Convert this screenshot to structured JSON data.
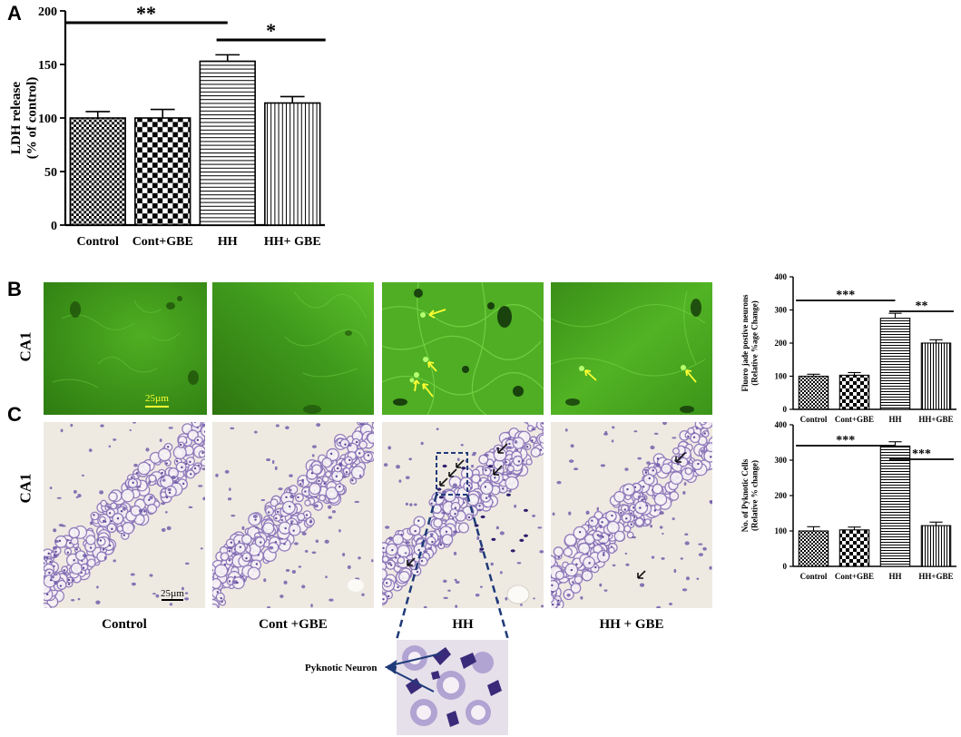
{
  "panels": {
    "a": {
      "letter": "A"
    },
    "b": {
      "letter": "B",
      "row_label": "CA1",
      "scale_bar": "25µm"
    },
    "c": {
      "letter": "C",
      "row_label": "CA1",
      "scale_bar": "25µm"
    }
  },
  "micrograph_captions": [
    "Control",
    "Cont +GBE",
    "HH",
    "HH + GBE"
  ],
  "inset_label": "Pyknotic Neuron",
  "colors": {
    "fluoro_bg": "#3f9a1c",
    "nissl_bg": "#eeeae2",
    "arrow_yellow": "#ffff33",
    "arrow_navy": "#1f3a78"
  },
  "chart_data": [
    {
      "type": "bar",
      "categories": [
        "Control",
        "Cont+GBE",
        "HH",
        "HH+ GBE"
      ],
      "values": [
        100,
        100,
        153,
        114
      ],
      "errors": [
        6,
        8,
        6,
        6
      ],
      "ylabel": "LDH release\n(% of control)",
      "ylim": [
        0,
        200
      ],
      "yticks": [
        "0",
        "50",
        "100",
        "150",
        "200"
      ],
      "patterns": [
        "checker-small",
        "checker-large",
        "horizontal",
        "vertical"
      ],
      "significance": [
        {
          "from": 0,
          "to": 2,
          "label": "**"
        },
        {
          "from": 2,
          "to": 3,
          "label": "*"
        }
      ]
    },
    {
      "type": "bar",
      "categories": [
        "Control",
        "Cont+GBE",
        "HH",
        "HH+GBE"
      ],
      "values": [
        100,
        103,
        275,
        200
      ],
      "errors": [
        6,
        8,
        15,
        10
      ],
      "ylabel": "Fluoro jade postive neurons\n(Relative %age Change)",
      "ylim": [
        0,
        400
      ],
      "yticks": [
        "0",
        "100",
        "200",
        "300",
        "400"
      ],
      "patterns": [
        "checker-small",
        "checker-large",
        "horizontal",
        "vertical"
      ],
      "significance": [
        {
          "from": 0,
          "to": 2,
          "label": "***"
        },
        {
          "from": 2,
          "to": 3,
          "label": "**"
        }
      ]
    },
    {
      "type": "bar",
      "categories": [
        "Control",
        "Cont+GBE",
        "HH",
        "HH+GBE"
      ],
      "values": [
        100,
        103,
        340,
        115
      ],
      "errors": [
        12,
        8,
        12,
        10
      ],
      "ylabel": "No. of Pyknotic Cells\n(Relative % change)",
      "ylim": [
        0,
        400
      ],
      "yticks": [
        "0",
        "100",
        "200",
        "300",
        "400"
      ],
      "patterns": [
        "checker-small",
        "checker-large",
        "horizontal",
        "vertical"
      ],
      "significance": [
        {
          "from": 0,
          "to": 2,
          "label": "***"
        },
        {
          "from": 2,
          "to": 3,
          "label": "***"
        }
      ]
    }
  ]
}
